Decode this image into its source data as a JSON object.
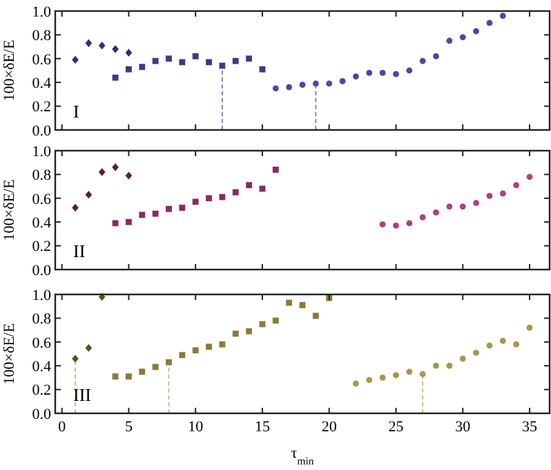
{
  "chart_data": [
    {
      "type": "scatter",
      "ylabel": "100×δE/E",
      "annotations": [
        "I"
      ],
      "xlim": [
        -0.5,
        36.5
      ],
      "xticks": [
        0,
        5,
        10,
        15,
        20,
        25,
        30,
        35
      ],
      "ylim": [
        0,
        1
      ],
      "yticks": [
        {
          "value": 0,
          "label": "0.0"
        },
        {
          "value": 0.2,
          "label": "0.2"
        },
        {
          "value": 0.4,
          "label": "0.4"
        },
        {
          "value": 0.6,
          "label": "0.6"
        },
        {
          "value": 0.8,
          "label": "0.8"
        },
        {
          "value": 1,
          "label": "1.0"
        }
      ],
      "tick_labels": "y",
      "grid": false,
      "series": [
        {
          "color": "#2e2e7a",
          "marker": "diamond",
          "x": [
            1,
            2,
            3,
            4,
            5
          ],
          "values": [
            0.59,
            0.73,
            0.71,
            0.68,
            0.65
          ]
        },
        {
          "color": "#3a3a8c",
          "marker": "square",
          "x": [
            4,
            5,
            6,
            7,
            8,
            9,
            10,
            11,
            12,
            13,
            14,
            15
          ],
          "values": [
            0.44,
            0.51,
            0.53,
            0.58,
            0.6,
            0.57,
            0.62,
            0.57,
            0.54,
            0.58,
            0.6,
            0.51
          ]
        },
        {
          "color": "#4848a8",
          "marker": "circle",
          "x": [
            16,
            17,
            18,
            19,
            20,
            21,
            22,
            23,
            24,
            25,
            26,
            27,
            28,
            29,
            30,
            31,
            32,
            33
          ],
          "values": [
            0.35,
            0.36,
            0.38,
            0.39,
            0.39,
            0.41,
            0.45,
            0.48,
            0.48,
            0.47,
            0.5,
            0.58,
            0.62,
            0.75,
            0.78,
            0.83,
            0.9,
            0.96
          ]
        }
      ],
      "ref_lines": [
        {
          "axis": "x",
          "value": 12,
          "color": "#7878c8",
          "line_style": "dashed"
        },
        {
          "axis": "x",
          "value": 19,
          "color": "#7878c8",
          "line_style": "dashed"
        }
      ]
    },
    {
      "type": "scatter",
      "ylabel": "100×δE/E",
      "annotations": [
        "II"
      ],
      "xlim": [
        -0.5,
        36.5
      ],
      "xticks": [
        0,
        5,
        10,
        15,
        20,
        25,
        30,
        35
      ],
      "ylim": [
        0,
        1
      ],
      "yticks": [
        {
          "value": 0,
          "label": "0.0"
        },
        {
          "value": 0.2,
          "label": "0.2"
        },
        {
          "value": 0.4,
          "label": "0.4"
        },
        {
          "value": 0.6,
          "label": "0.6"
        },
        {
          "value": 0.8,
          "label": "0.8"
        },
        {
          "value": 1,
          "label": "1.0"
        }
      ],
      "tick_labels": "y",
      "grid": false,
      "series": [
        {
          "color": "#5a1f40",
          "marker": "diamond",
          "x": [
            1,
            2,
            3,
            4,
            5
          ],
          "values": [
            0.52,
            0.63,
            0.82,
            0.86,
            0.79
          ]
        },
        {
          "color": "#8b2a5e",
          "marker": "square",
          "x": [
            4,
            5,
            6,
            7,
            8,
            9,
            10,
            11,
            12,
            13,
            14,
            15,
            16
          ],
          "values": [
            0.39,
            0.4,
            0.46,
            0.47,
            0.51,
            0.52,
            0.57,
            0.6,
            0.61,
            0.65,
            0.71,
            0.68,
            0.84
          ]
        },
        {
          "color": "#b0407a",
          "marker": "circle",
          "x": [
            24,
            25,
            26,
            27,
            28,
            29,
            30,
            31,
            32,
            33,
            34,
            35
          ],
          "values": [
            0.38,
            0.37,
            0.39,
            0.44,
            0.48,
            0.53,
            0.53,
            0.56,
            0.62,
            0.64,
            0.71,
            0.78
          ]
        }
      ]
    },
    {
      "type": "scatter",
      "ylabel": "100×δE/E",
      "xlabel": "τ$_{min}$",
      "annotations": [
        "III"
      ],
      "xlim": [
        -0.5,
        36.5
      ],
      "xticks": [
        0,
        5,
        10,
        15,
        20,
        25,
        30,
        35
      ],
      "ylim": [
        0,
        1
      ],
      "yticks": [
        {
          "value": 0,
          "label": "0.0"
        },
        {
          "value": 0.2,
          "label": "0.2"
        },
        {
          "value": 0.4,
          "label": "0.4"
        },
        {
          "value": 0.6,
          "label": "0.6"
        },
        {
          "value": 0.8,
          "label": "0.8"
        },
        {
          "value": 1,
          "label": "1.0"
        }
      ],
      "grid": false,
      "series": [
        {
          "color": "#5e5020",
          "marker": "diamond",
          "x": [
            1,
            2,
            3
          ],
          "values": [
            0.46,
            0.55,
            0.98
          ]
        },
        {
          "color": "#8a7a3a",
          "marker": "square",
          "x": [
            4,
            5,
            6,
            7,
            8,
            9,
            10,
            11,
            12,
            13,
            14,
            15,
            16,
            17,
            18,
            19,
            20
          ],
          "values": [
            0.31,
            0.31,
            0.35,
            0.39,
            0.43,
            0.49,
            0.53,
            0.56,
            0.58,
            0.67,
            0.69,
            0.75,
            0.78,
            0.93,
            0.91,
            0.82,
            0.97
          ]
        },
        {
          "color": "#a8954a",
          "marker": "circle",
          "x": [
            22,
            23,
            24,
            25,
            26,
            27,
            28,
            29,
            30,
            31,
            32,
            33,
            34,
            35
          ],
          "values": [
            0.25,
            0.28,
            0.3,
            0.32,
            0.35,
            0.33,
            0.4,
            0.4,
            0.46,
            0.51,
            0.57,
            0.61,
            0.58,
            0.72
          ]
        }
      ],
      "ref_lines": [
        {
          "axis": "x",
          "value": 1,
          "color": "#c8b880",
          "line_style": "dashed"
        },
        {
          "axis": "x",
          "value": 8,
          "color": "#c8b880",
          "line_style": "dashed"
        },
        {
          "axis": "x",
          "value": 27,
          "color": "#c8b880",
          "line_style": "dashed"
        }
      ]
    }
  ]
}
